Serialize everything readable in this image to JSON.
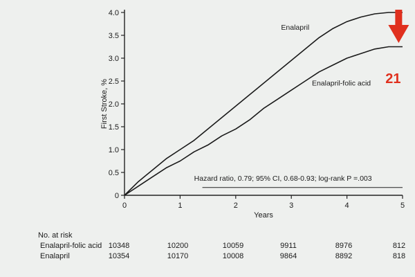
{
  "chart_data": {
    "type": "line",
    "xlabel": "Years",
    "ylabel": "First Stroke, %",
    "xlim": [
      0,
      5
    ],
    "ylim": [
      0,
      4.0
    ],
    "x_ticks": [
      0,
      1,
      2,
      3,
      4,
      5
    ],
    "y_ticks": [
      0,
      0.5,
      1.0,
      1.5,
      2.0,
      2.5,
      3.0,
      3.5,
      4.0
    ],
    "y_tick_labels": [
      "0",
      "0.5",
      "1.0",
      "1.5",
      "2.0",
      "2.5",
      "3.0",
      "3.5",
      "4.0"
    ],
    "series": [
      {
        "name": "Enalapril",
        "color": "#1a1a1a",
        "x": [
          0,
          0.25,
          0.5,
          0.75,
          1.0,
          1.25,
          1.5,
          1.75,
          2.0,
          2.25,
          2.5,
          2.75,
          3.0,
          3.25,
          3.5,
          3.75,
          4.0,
          4.25,
          4.5,
          4.75,
          5.0
        ],
        "y": [
          0,
          0.3,
          0.55,
          0.8,
          1.0,
          1.2,
          1.45,
          1.7,
          1.95,
          2.2,
          2.45,
          2.7,
          2.95,
          3.2,
          3.45,
          3.65,
          3.8,
          3.9,
          3.97,
          4.0,
          4.0
        ]
      },
      {
        "name": "Enalapril-folic acid",
        "color": "#1a1a1a",
        "x": [
          0,
          0.25,
          0.5,
          0.75,
          1.0,
          1.25,
          1.5,
          1.75,
          2.0,
          2.25,
          2.5,
          2.75,
          3.0,
          3.25,
          3.5,
          3.75,
          4.0,
          4.25,
          4.5,
          4.75,
          5.0
        ],
        "y": [
          0,
          0.2,
          0.4,
          0.6,
          0.75,
          0.95,
          1.1,
          1.3,
          1.45,
          1.65,
          1.9,
          2.1,
          2.3,
          2.5,
          2.7,
          2.85,
          3.0,
          3.1,
          3.2,
          3.25,
          3.25
        ]
      }
    ],
    "annotation": "Hazard ratio, 0.79; 95% CI, 0.68-0.93; log-rank P =.003",
    "marker": {
      "label": "21",
      "color": "#e0301e"
    },
    "grid": false
  },
  "risk_table": {
    "title": "No. at risk",
    "rows": [
      {
        "label": "Enalapril-folic acid",
        "values": [
          "10348",
          "10200",
          "10059",
          "9911",
          "8976",
          "812"
        ]
      },
      {
        "label": "Enalapril",
        "values": [
          "10354",
          "10170",
          "10008",
          "9864",
          "8892",
          "818"
        ]
      }
    ]
  }
}
